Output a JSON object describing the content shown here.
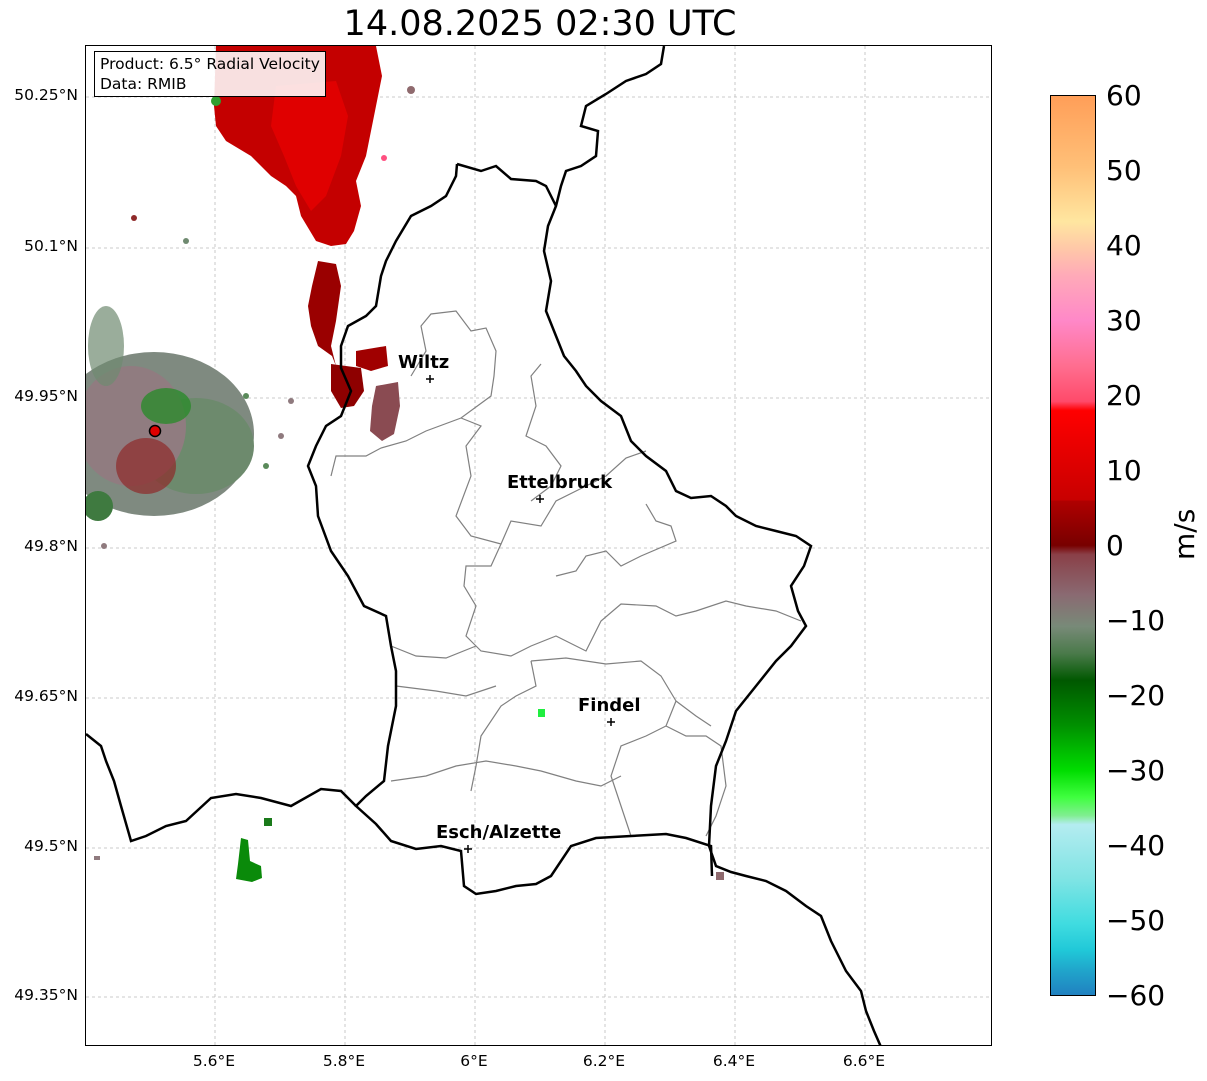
{
  "title": "14.08.2025 02:30 UTC",
  "info": {
    "product": "Product: 6.5° Radial Velocity",
    "data": "Data: RMIB"
  },
  "axes": {
    "y_ticks": [
      "50.25°N",
      "50.1°N",
      "49.95°N",
      "49.8°N",
      "49.65°N",
      "49.5°N",
      "49.35°N"
    ],
    "x_ticks": [
      "5.6°E",
      "5.8°E",
      "6°E",
      "6.2°E",
      "6.4°E",
      "6.6°E"
    ]
  },
  "cities": [
    {
      "name": "Wiltz"
    },
    {
      "name": "Ettelbruck"
    },
    {
      "name": "Findel"
    },
    {
      "name": "Esch/Alzette"
    }
  ],
  "colorbar": {
    "label": "m/s",
    "ticks": [
      "60",
      "50",
      "40",
      "30",
      "20",
      "10",
      "0",
      "−10",
      "−20",
      "−30",
      "−40",
      "−50",
      "−60"
    ],
    "range": [
      -60,
      60
    ]
  }
}
